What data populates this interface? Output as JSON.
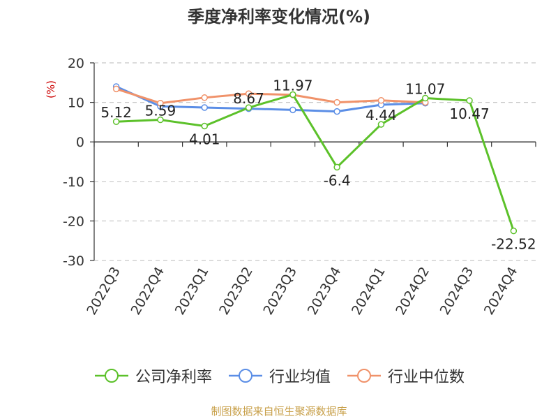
{
  "chart_data": {
    "type": "line",
    "title": "季度净利率变化情况(%)",
    "ylabel": "(%)",
    "xlabel": "",
    "ylim": [
      -30,
      20
    ],
    "yticks": [
      20,
      10,
      0,
      -10,
      -20,
      -30
    ],
    "grid": true,
    "legend_placement": "bottom",
    "categories": [
      "2022Q3",
      "2022Q4",
      "2023Q1",
      "2023Q2",
      "2023Q3",
      "2023Q4",
      "2024Q1",
      "2024Q2",
      "2024Q3",
      "2024Q4"
    ],
    "series": [
      {
        "name": "公司净利率",
        "color": "#5cc12a",
        "values": [
          5.12,
          5.59,
          4.01,
          8.67,
          11.97,
          -6.4,
          4.44,
          11.07,
          10.47,
          -22.52
        ],
        "labels": [
          "5.12",
          "5.59",
          "4.01",
          "8.67",
          "11.97",
          "-6.4",
          "4.44",
          "11.07",
          "10.47",
          "-22.52"
        ]
      },
      {
        "name": "行业均值",
        "color": "#5b8ee6",
        "values": [
          14.0,
          9.0,
          8.7,
          8.4,
          8.1,
          7.7,
          9.4,
          9.8,
          null,
          null
        ]
      },
      {
        "name": "行业中位数",
        "color": "#f0926a",
        "values": [
          13.4,
          9.8,
          11.2,
          12.2,
          11.9,
          10.0,
          10.5,
          10.0,
          null,
          null
        ]
      }
    ]
  },
  "source": "制图数据来自恒生聚源数据库"
}
